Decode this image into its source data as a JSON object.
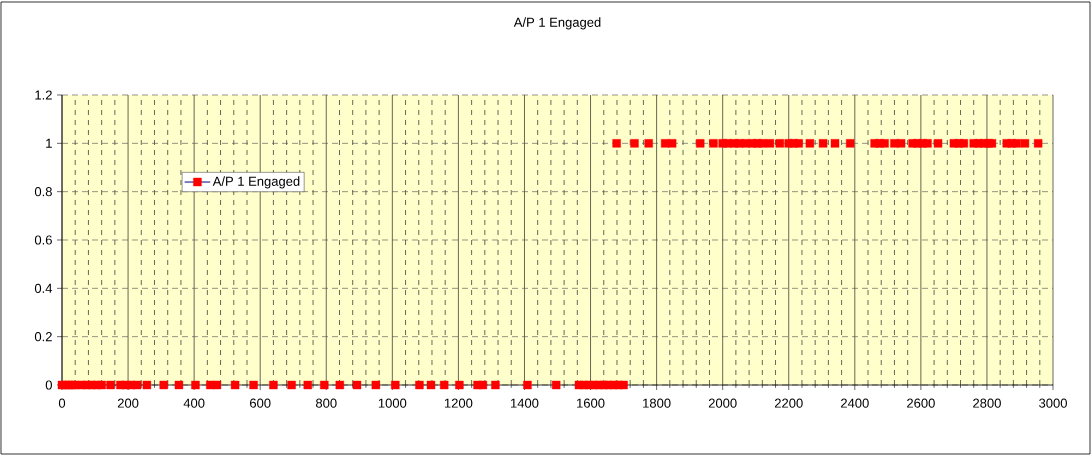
{
  "chart_data": {
    "type": "scatter",
    "title": "A/P 1 Engaged",
    "x": [
      0,
      10,
      20,
      30,
      40,
      60,
      75,
      90,
      105,
      120,
      147,
      177,
      193,
      209,
      227,
      257,
      308,
      354,
      404,
      449,
      469,
      524,
      580,
      640,
      695,
      744,
      794,
      841,
      893,
      950,
      1009,
      1082,
      1117,
      1157,
      1203,
      1258,
      1274,
      1312,
      1409,
      1496,
      1565,
      1580,
      1595,
      1610,
      1625,
      1640,
      1655,
      1670,
      1685,
      1700,
      1679,
      1733,
      1776,
      1826,
      1847,
      1932,
      1972,
      2000,
      2015,
      2035,
      2050,
      2070,
      2090,
      2105,
      2120,
      2143,
      2173,
      2200,
      2215,
      2230,
      2264,
      2304,
      2340,
      2386,
      2460,
      2475,
      2490,
      2520,
      2540,
      2575,
      2590,
      2605,
      2620,
      2652,
      2700,
      2715,
      2730,
      2760,
      2775,
      2790,
      2805,
      2815,
      2860,
      2875,
      2890,
      2915,
      2955
    ],
    "series": [
      {
        "name": "A/P 1 Engaged",
        "color": "#ff0000",
        "values": [
          0,
          0,
          0,
          0,
          0,
          0,
          0,
          0,
          0,
          0,
          0,
          0,
          0,
          0,
          0,
          0,
          0,
          0,
          0,
          0,
          0,
          0,
          0,
          0,
          0,
          0,
          0,
          0,
          0,
          0,
          0,
          0,
          0,
          0,
          0,
          0,
          0,
          0,
          0,
          0,
          0,
          0,
          0,
          0,
          0,
          0,
          0,
          0,
          0,
          0,
          1,
          1,
          1,
          1,
          1,
          1,
          1,
          1,
          1,
          1,
          1,
          1,
          1,
          1,
          1,
          1,
          1,
          1,
          1,
          1,
          1,
          1,
          1,
          1,
          1,
          1,
          1,
          1,
          1,
          1,
          1,
          1,
          1,
          1,
          1,
          1,
          1,
          1,
          1,
          1,
          1,
          1,
          1,
          1,
          1,
          1,
          1
        ]
      }
    ],
    "xlim": [
      0,
      3000
    ],
    "xticks": [
      0,
      200,
      400,
      600,
      800,
      1000,
      1200,
      1400,
      1600,
      1800,
      2000,
      2200,
      2400,
      2600,
      2800,
      3000
    ],
    "ylim": [
      0,
      1.2
    ],
    "yticks": [
      0,
      0.2,
      0.4,
      0.6,
      0.8,
      1,
      1.2
    ],
    "grid": true,
    "legend": "top left",
    "marker": "square"
  }
}
